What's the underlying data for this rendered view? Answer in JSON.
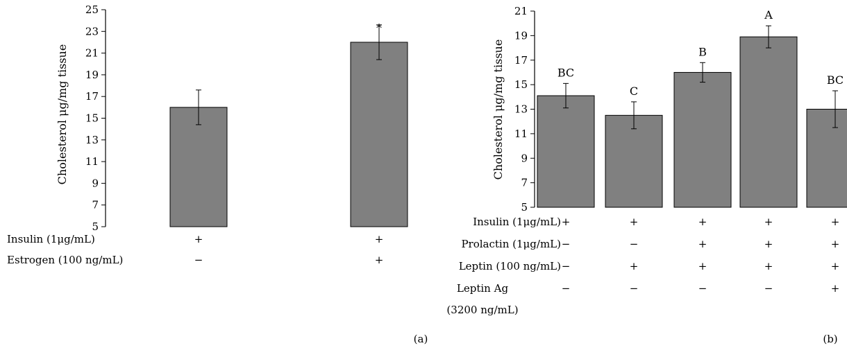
{
  "chart_data": [
    {
      "type": "bar",
      "panel_label": "(a)",
      "ylabel": "Cholesterol μg/mg tissue",
      "ylim": [
        5,
        25
      ],
      "yticks": [
        5,
        7,
        9,
        11,
        13,
        15,
        17,
        19,
        21,
        23,
        25
      ],
      "values": [
        16.0,
        22.0
      ],
      "errors": [
        1.6,
        1.6
      ],
      "significance": [
        "",
        "*"
      ],
      "treatments": [
        {
          "label": "Insulin (1μg/mL)",
          "signs": [
            "+",
            "+"
          ]
        },
        {
          "label": "Estrogen (100 ng/mL)",
          "signs": [
            "−",
            "+"
          ]
        }
      ]
    },
    {
      "type": "bar",
      "panel_label": "(b)",
      "ylabel": "Cholesterol μg/mg tissue",
      "ylim": [
        5,
        21
      ],
      "yticks": [
        5,
        7,
        9,
        11,
        13,
        15,
        17,
        19,
        21
      ],
      "values": [
        14.1,
        12.5,
        16.0,
        18.9,
        13.0
      ],
      "errors": [
        1.0,
        1.1,
        0.8,
        0.9,
        1.5
      ],
      "significance": [
        "BC",
        "C",
        "B",
        "A",
        "BC"
      ],
      "treatments": [
        {
          "label": "Insulin (1μg/mL)",
          "signs": [
            "+",
            "+",
            "+",
            "+",
            "+"
          ]
        },
        {
          "label": "Prolactin (1μg/mL)",
          "signs": [
            "−",
            "−",
            "+",
            "+",
            "+"
          ]
        },
        {
          "label": "Leptin (100 ng/mL)",
          "signs": [
            "−",
            "+",
            "+",
            "+",
            "+"
          ]
        },
        {
          "label": "Leptin Ag",
          "label2": "(3200 ng/mL)",
          "signs": [
            "−",
            "−",
            "−",
            "−",
            "+"
          ]
        }
      ]
    }
  ]
}
